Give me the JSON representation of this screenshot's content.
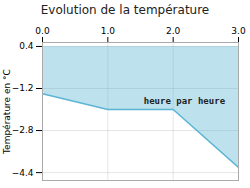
{
  "chart_data": {
    "type": "area",
    "title": "Evolution de la température",
    "ylabel": "Température en °C",
    "x": [
      0,
      1,
      2,
      3
    ],
    "values": [
      -1.4,
      -2.0,
      -2.0,
      -4.2
    ],
    "fill_to": 0.4,
    "color": "#5ab4d2",
    "xlim": [
      0,
      3
    ],
    "ylim": [
      -4.7,
      0.55
    ],
    "xticks": [
      0,
      1,
      2,
      3
    ],
    "yticks": [
      0.4,
      -1.2,
      -2.8,
      -4.4
    ],
    "grid": true,
    "annotations": [
      {
        "text": "heure par heure",
        "x": 1.55,
        "y": -1.55
      }
    ]
  }
}
